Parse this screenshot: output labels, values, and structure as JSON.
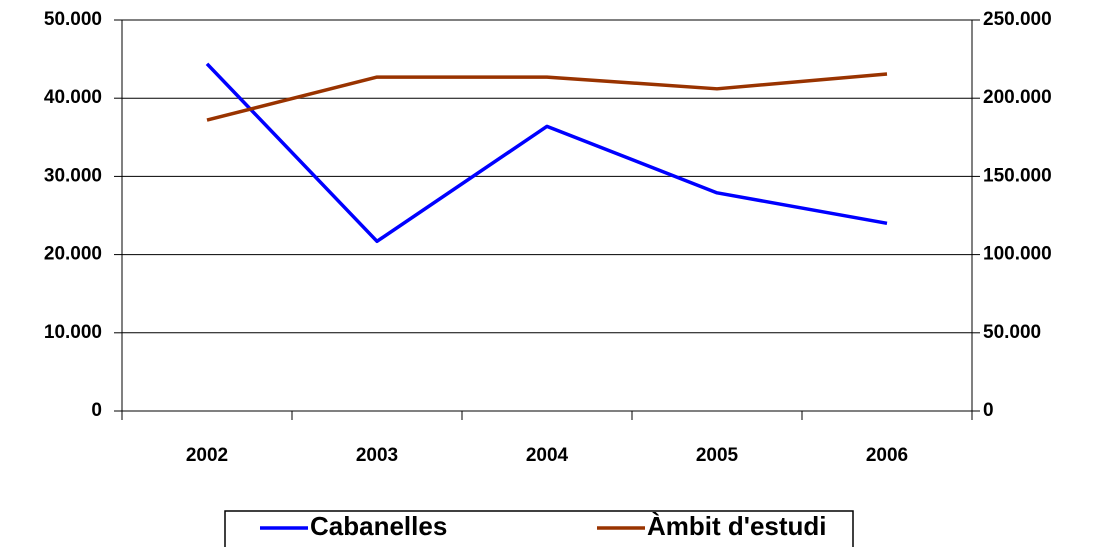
{
  "chart_data": {
    "type": "line",
    "categories": [
      "2002",
      "2003",
      "2004",
      "2005",
      "2006"
    ],
    "series": [
      {
        "name": "Cabanelles",
        "color": "#0000ff",
        "values": [
          44400,
          21700,
          36400,
          27900,
          24000
        ]
      },
      {
        "name": "Àmbit d'estudi",
        "color": "#993300",
        "axis": "y2",
        "values": [
          186000,
          213500,
          213500,
          206000,
          215500
        ]
      }
    ],
    "ylim": [
      0,
      50000
    ],
    "yticks": [
      0,
      {
        "value": 10000,
        "label": "10.000"
      },
      {
        "value": 20000,
        "label": "20.000"
      },
      {
        "value": 30000,
        "label": "30.000"
      },
      {
        "value": 40000,
        "label": "40.000"
      },
      {
        "value": 50000,
        "label": "50.000"
      }
    ],
    "y2lim": [
      0,
      250000
    ],
    "y2ticks": [
      0,
      {
        "value": 50000,
        "label": "50.000"
      },
      {
        "value": 100000,
        "label": "100.000"
      },
      {
        "value": 150000,
        "label": "150.000"
      },
      {
        "value": 200000,
        "label": "200.000"
      },
      {
        "value": 250000,
        "label": "250.000"
      }
    ],
    "grid": true,
    "legend": "bottom"
  }
}
